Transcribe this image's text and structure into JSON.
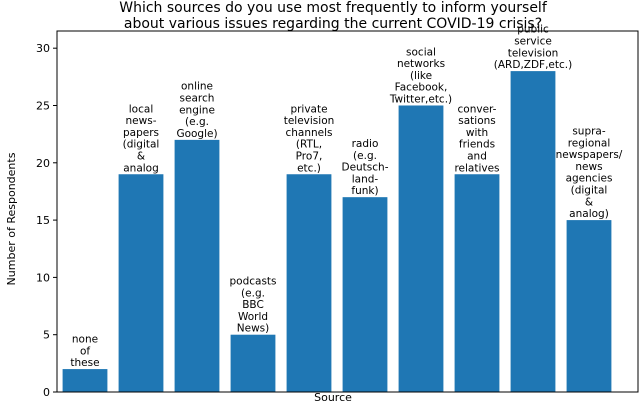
{
  "chart_data": {
    "type": "bar",
    "title_lines": [
      "Which sources do you use most frequently to inform yourself",
      "about various issues regarding the current COVID-19 crisis?"
    ],
    "xlabel": "Source",
    "ylabel": "Number of Respondents",
    "ylim": [
      0,
      31.5
    ],
    "yticks": [
      0,
      5,
      10,
      15,
      20,
      25,
      30
    ],
    "grid": false,
    "bar_color": "#1f77b4",
    "categories": [
      [
        "none",
        "of",
        "these"
      ],
      [
        "local",
        "news-",
        "papers",
        "(digital",
        "&",
        "analog"
      ],
      [
        "online",
        "search",
        "engine",
        "(e.g.",
        "Google)"
      ],
      [
        "podcasts",
        "(e.g.",
        "BBC",
        "World",
        "News)"
      ],
      [
        "private",
        "television",
        "channels",
        "(RTL,",
        "Pro7,",
        "etc.)"
      ],
      [
        "radio",
        "(e.g.",
        "Deutsch-",
        "land-",
        "funk)"
      ],
      [
        "social",
        "networks",
        "(like",
        "Facebook,",
        "Twitter,etc.)"
      ],
      [
        "conver-",
        "sations",
        "with",
        "friends",
        "and",
        "relatives"
      ],
      [
        "public",
        "service",
        "television",
        "(ARD,ZDF,etc.)"
      ],
      [
        "supra-",
        "regional",
        "newspapers/",
        "news",
        "agencies",
        "(digital",
        "&",
        "analog)"
      ]
    ],
    "values": [
      2,
      19,
      22,
      5,
      19,
      17,
      25,
      19,
      28,
      15
    ]
  }
}
